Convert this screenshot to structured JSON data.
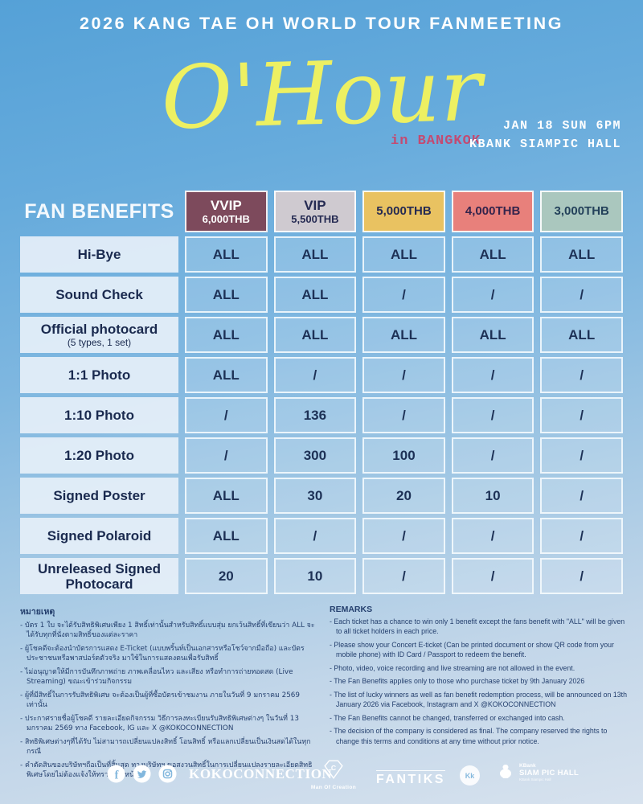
{
  "colors": {
    "bg_top": "#55a1d7",
    "bg_bottom": "#d7e2ee",
    "accent_yellow": "#edf062",
    "accent_pink": "#c34b72",
    "cell_text": "#1d3156",
    "label_cell_bg": "#e5eff9"
  },
  "header": {
    "title": "2026 KANG TAE OH WORLD TOUR FANMEETING",
    "logo_text": "O'Hour",
    "location": "in BANGKOK",
    "datetime": "JAN 18 SUN 6PM",
    "venue": "KBANK SIAMPIC HALL"
  },
  "table": {
    "corner_label": "FAN BENEFITS",
    "tiers": [
      {
        "name": "VVIP",
        "price": "6,000THB",
        "bg": "#7d4a5c",
        "fg": "#ffffff"
      },
      {
        "name": "VIP",
        "price": "5,500THB",
        "bg": "#cfcad0",
        "fg": "#252a52"
      },
      {
        "name": "",
        "price": "5,000THB",
        "bg": "#e9c261",
        "fg": "#252a52"
      },
      {
        "name": "",
        "price": "4,000THB",
        "bg": "#e8807b",
        "fg": "#34244c"
      },
      {
        "name": "",
        "price": "3,000THB",
        "bg": "#aac7be",
        "fg": "#23415a"
      }
    ],
    "rows": [
      {
        "label": "Hi-Bye",
        "sublabel": "",
        "values": [
          "ALL",
          "ALL",
          "ALL",
          "ALL",
          "ALL"
        ]
      },
      {
        "label": "Sound Check",
        "sublabel": "",
        "values": [
          "ALL",
          "ALL",
          "/",
          "/",
          "/"
        ]
      },
      {
        "label": "Official photocard",
        "sublabel": "(5 types, 1 set)",
        "values": [
          "ALL",
          "ALL",
          "ALL",
          "ALL",
          "ALL"
        ]
      },
      {
        "label": "1:1 Photo",
        "sublabel": "",
        "values": [
          "ALL",
          "/",
          "/",
          "/",
          "/"
        ]
      },
      {
        "label": "1:10 Photo",
        "sublabel": "",
        "values": [
          "/",
          "136",
          "/",
          "/",
          "/"
        ]
      },
      {
        "label": "1:20 Photo",
        "sublabel": "",
        "values": [
          "/",
          "300",
          "100",
          "/",
          "/"
        ]
      },
      {
        "label": "Signed Poster",
        "sublabel": "",
        "values": [
          "ALL",
          "30",
          "20",
          "10",
          "/"
        ]
      },
      {
        "label": "Signed Polaroid",
        "sublabel": "",
        "values": [
          "ALL",
          "/",
          "/",
          "/",
          "/"
        ]
      },
      {
        "label": "Unreleased Signed Photocard",
        "sublabel": "",
        "values": [
          "20",
          "10",
          "/",
          "/",
          "/"
        ]
      }
    ]
  },
  "notes_th": {
    "heading": "หมายเหตุ",
    "items": [
      "บัตร 1 ใบ จะได้รับสิทธิพิเศษเพียง 1 สิทธิ์เท่านั้นสำหรับสิทธิ์แบบสุ่ม ยกเว้นสิทธิ์ที่เขียนว่า ALL จะได้รับทุกที่นั่งตามสิทธิ์ของแต่ละราคา",
      "ผู้โชคดีจะต้องนำบัตรการแสดง E-Ticket (แบบพริ้นท์เป็นเอกสารหรือโชว์จากมือถือ) และบัตรประชาชนหรือพาสปอร์ตตัวจริง มาใช้ในการแสดงตนเพื่อรับสิทธิ์",
      "ไม่อนุญาตให้มีการบันทึกภาพถ่าย ภาพเคลื่อนไหว และเสียง หรือทำการถ่ายทอดสด (Live Streaming) ขณะเข้าร่วมกิจกรรม",
      "ผู้ที่มีสิทธิ์ในการรับสิทธิพิเศษ จะต้องเป็นผู้ที่ซื้อบัตรเข้าชมงาน ภายในวันที่ 9 มกราคม 2569 เท่านั้น",
      "ประกาศรายชื่อผู้โชคดี รายละเอียดกิจกรรม วิธีการลงทะเบียนรับสิทธิพิเศษต่างๆ ในวันที่ 13 มกราคม 2569 ทาง Facebook, IG และ X @KOKOCONNECTION",
      "สิทธิพิเศษต่างๆที่ได้รับ ไม่สามารถเปลี่ยนแปลงสิทธิ์ โอนสิทธิ์ หรือแลกเปลี่ยนเป็นเงินสดได้ในทุกกรณี",
      "คำตัดสินของบริษัทฯถือเป็นที่สิ้นสุด ทางบริษัทฯ ขอสงวนสิทธิ์ในการเปลี่ยนแปลงรายละเอียดสิทธิพิเศษโดยไม่ต้องแจ้งให้ทราบล่วงหน้า"
    ]
  },
  "remarks_en": {
    "heading": "REMARKS",
    "items": [
      "Each ticket has a chance to win only 1 benefit except the fans benefit with \"ALL\" will be given to all ticket holders in each price.",
      "Please show your Concert E-ticket (Can be printed document or show QR code from your mobile phone) with ID Card / Passport to redeem the benefit.",
      "Photo, video, voice recording and live streaming are not allowed in the event.",
      "The Fan Benefits applies only to those who purchase ticket by 9th January 2026",
      "The list of lucky winners as well as fan benefit redemption process, will be announced on 13th January 2026 via Facebook, Instagram and X @KOKOCONNECTION",
      "The Fan Benefits cannot be changed, transferred or exchanged into cash.",
      "The decision of the company is considered as final. The company reserved the rights to change this terms and conditions at any time without prior notice."
    ]
  },
  "footer": {
    "handle": "KOKOCONNECTION",
    "partners": {
      "moc_label": "Man Of Creation",
      "fantiks_label": "FANTIKS",
      "kk_label": "Kk",
      "hall_brand": "KBank",
      "hall_name": "SIAM PIC HALL",
      "hall_sub": "KBank Siampic Hall"
    }
  }
}
